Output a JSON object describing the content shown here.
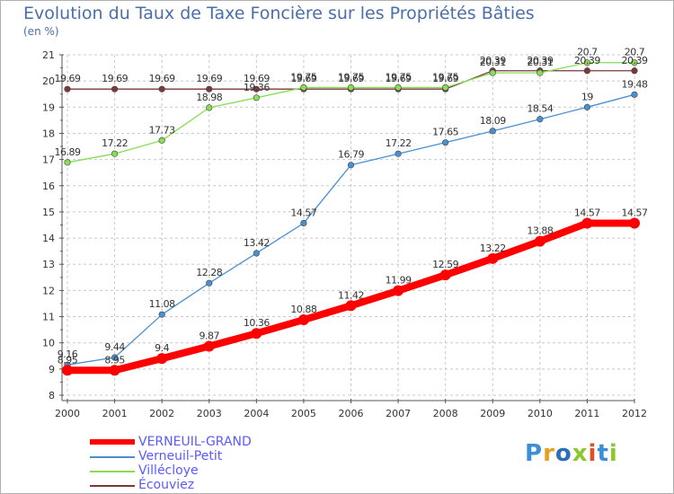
{
  "chart_data": {
    "type": "line",
    "title": "Evolution du Taux de Taxe Foncière sur les Propriétés Bâties",
    "ylabel": "(en %)",
    "xlabel": "",
    "ylim": [
      8,
      21
    ],
    "yticks": [
      "8",
      "9",
      "10",
      "11",
      "12",
      "13",
      "14",
      "15",
      "16",
      "17",
      "18",
      "19",
      "20",
      "21"
    ],
    "categories": [
      "2000",
      "2001",
      "2002",
      "2003",
      "2004",
      "2005",
      "2006",
      "2007",
      "2008",
      "2009",
      "2010",
      "2011",
      "2012"
    ],
    "grid": true,
    "series": [
      {
        "name": "VERNEUIL-GRAND",
        "color": "#ff0000",
        "values": [
          8.95,
          8.95,
          9.4,
          9.87,
          10.36,
          10.88,
          11.42,
          11.99,
          12.59,
          13.22,
          13.88,
          14.57,
          14.57
        ],
        "labels": [
          "8.95",
          "8.95",
          "9.4",
          "9.87",
          "10.36",
          "10.88",
          "11.42",
          "11.99",
          "12.59",
          "13.22",
          "13.88",
          "14.57",
          "14.57"
        ]
      },
      {
        "name": "Verneuil-Petit",
        "color": "#4a90d0",
        "values": [
          9.16,
          9.44,
          11.08,
          12.28,
          13.42,
          14.57,
          16.79,
          17.22,
          17.65,
          18.09,
          18.54,
          19.0,
          19.48
        ],
        "labels": [
          "9.16",
          "9.44",
          "11.08",
          "12.28",
          "13.42",
          "14.57",
          "16.79",
          "17.22",
          "17.65",
          "18.09",
          "18.54",
          "19",
          "19.48"
        ]
      },
      {
        "name": "Villécloye",
        "color": "#88dd55",
        "values": [
          16.89,
          17.22,
          17.73,
          18.98,
          19.36,
          19.75,
          19.75,
          19.75,
          19.75,
          20.31,
          20.31,
          20.7,
          20.7
        ],
        "labels": [
          "16.89",
          "17.22",
          "17.73",
          "18.98",
          "19.36",
          "19.75",
          "19.75",
          "19.75",
          "19.75",
          "20.31",
          "20.31",
          "20.7",
          "20.7"
        ]
      },
      {
        "name": "Écouviez",
        "color": "#7a3a3a",
        "values": [
          19.69,
          19.69,
          19.69,
          19.69,
          19.69,
          19.69,
          19.69,
          19.69,
          19.69,
          20.39,
          20.39,
          20.39,
          20.39
        ],
        "labels": [
          "19.69",
          "19.69",
          "19.69",
          "19.69",
          "19.69",
          "19.69",
          "19.69",
          "19.69",
          "19.69",
          "20.39",
          "20.39",
          "20.39",
          "20.39"
        ]
      }
    ],
    "legend_position": "bottom-left"
  },
  "logo": {
    "text": "Proxiti",
    "colors": [
      "#3a8fd8",
      "#e8a020",
      "#2a6fb8",
      "#8ac830",
      "#e05020",
      "#3a8fd8",
      "#8ac830"
    ]
  }
}
